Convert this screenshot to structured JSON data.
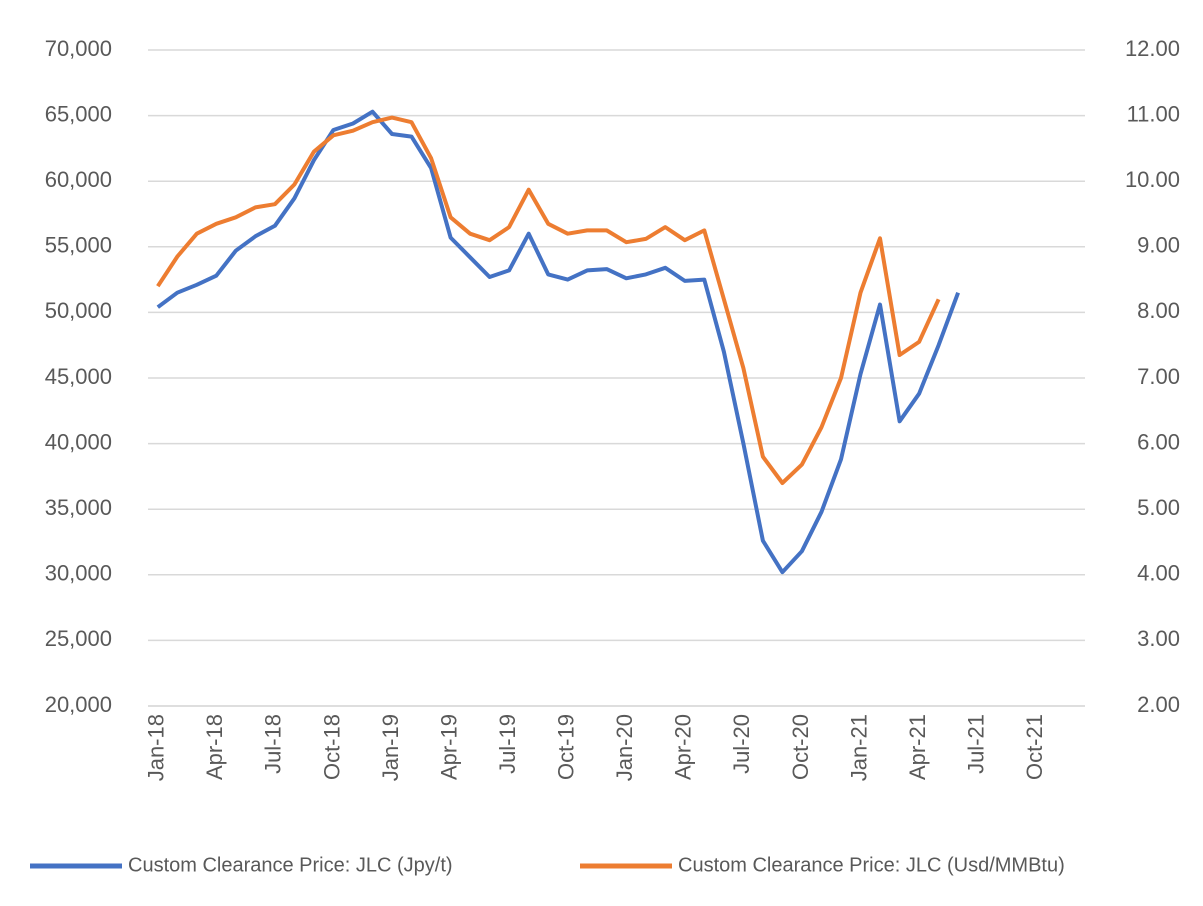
{
  "chart_data": {
    "type": "line",
    "categories": [
      "Jan-18",
      null,
      null,
      "Apr-18",
      null,
      null,
      "Jul-18",
      null,
      null,
      "Oct-18",
      null,
      null,
      "Jan-19",
      null,
      null,
      "Apr-19",
      null,
      null,
      "Jul-19",
      null,
      null,
      "Oct-19",
      null,
      null,
      "Jan-20",
      null,
      null,
      "Apr-20",
      null,
      null,
      "Jul-20",
      null,
      null,
      "Oct-20",
      null,
      null,
      "Jan-21",
      null,
      null,
      "Apr-21",
      null,
      null,
      "Jul-21",
      null,
      null,
      "Oct-21",
      null,
      null
    ],
    "series": [
      {
        "name": "Custom Clearance Price: JLC (Jpy/t)",
        "color": "#4472c4",
        "values": [
          50400,
          51500,
          52100,
          52800,
          54700,
          55800,
          56600,
          58700,
          61600,
          63900,
          64400,
          65300,
          63600,
          63400,
          61000,
          55700,
          54200,
          52700,
          53200,
          56000,
          52900,
          52500,
          53200,
          53300,
          52600,
          52900,
          53400,
          52400,
          52500,
          47000,
          40000,
          32600,
          30200,
          31800,
          34800,
          38800,
          45300,
          50600,
          41700,
          43800,
          47500,
          51500,
          null,
          null,
          null,
          null,
          null,
          null
        ]
      },
      {
        "name": "Custom Clearance Price: JLC (Usd/MMBtu)",
        "color": "#ed7d31",
        "axis": "y2",
        "values": [
          8.4,
          8.85,
          9.2,
          9.35,
          9.45,
          9.6,
          9.65,
          9.95,
          10.45,
          10.7,
          10.77,
          10.9,
          10.97,
          10.9,
          10.35,
          9.45,
          9.2,
          9.1,
          9.3,
          9.87,
          9.35,
          9.2,
          9.25,
          9.25,
          9.07,
          9.12,
          9.3,
          9.1,
          9.25,
          8.2,
          7.15,
          5.8,
          5.4,
          5.68,
          6.25,
          7.0,
          8.3,
          9.13,
          7.35,
          7.55,
          8.2,
          null,
          null,
          null,
          null,
          null,
          null,
          null
        ]
      }
    ],
    "ylim": [
      20000,
      70000
    ],
    "yticks": [
      {
        "value": 20000,
        "label": "20,000"
      },
      {
        "value": 25000,
        "label": "25,000"
      },
      {
        "value": 30000,
        "label": "30,000"
      },
      {
        "value": 35000,
        "label": "35,000"
      },
      {
        "value": 40000,
        "label": "40,000"
      },
      {
        "value": 45000,
        "label": "45,000"
      },
      {
        "value": 50000,
        "label": "50,000"
      },
      {
        "value": 55000,
        "label": "55,000"
      },
      {
        "value": 60000,
        "label": "60,000"
      },
      {
        "value": 65000,
        "label": "65,000"
      },
      {
        "value": 70000,
        "label": "70,000"
      }
    ],
    "y2lim": [
      2,
      12
    ],
    "y2ticks": [
      {
        "value": 2,
        "label": "2.00"
      },
      {
        "value": 3,
        "label": "3.00"
      },
      {
        "value": 4,
        "label": "4.00"
      },
      {
        "value": 5,
        "label": "5.00"
      },
      {
        "value": 6,
        "label": "6.00"
      },
      {
        "value": 7,
        "label": "7.00"
      },
      {
        "value": 8,
        "label": "8.00"
      },
      {
        "value": 9,
        "label": "9.00"
      },
      {
        "value": 10,
        "label": "10.00"
      },
      {
        "value": 11,
        "label": "11.00"
      },
      {
        "value": 12,
        "label": "12.00"
      }
    ],
    "grid": true,
    "legend": "bottom"
  }
}
